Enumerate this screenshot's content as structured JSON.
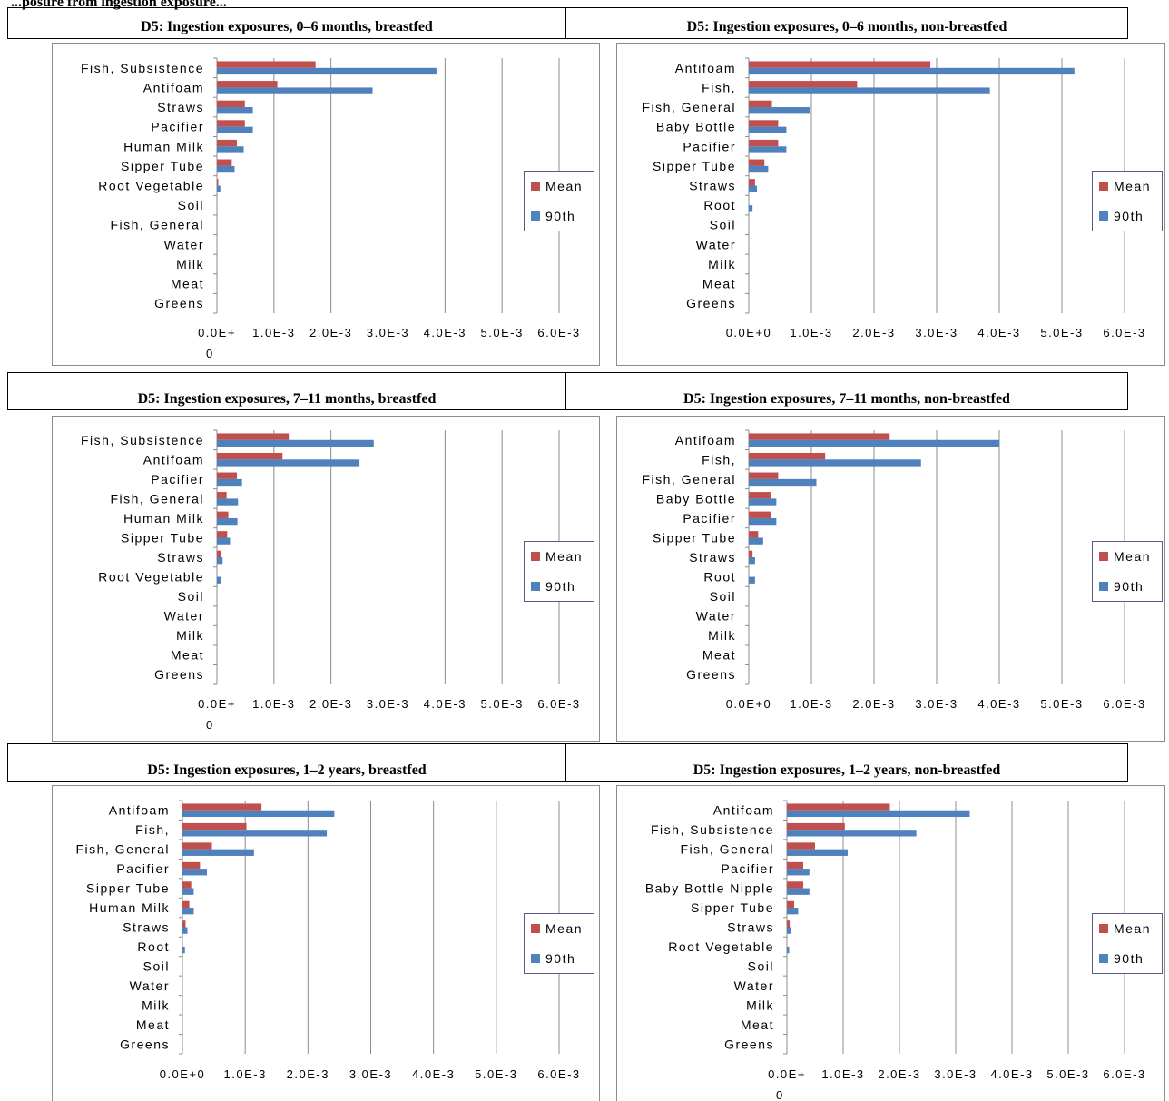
{
  "header_fragment": "...posure from ingestion exposure...",
  "chart_data": [
    {
      "type": "bar",
      "title": "D5: Ingestion exposures, 0–6 months, breastfed",
      "categories": [
        "Fish, Subsistence",
        "Antifoam",
        "Straws",
        "Pacifier",
        "Human Milk",
        "Sipper Tube",
        "Root Vegetable",
        "Soil",
        "Fish, General",
        "Water",
        "Milk",
        "Meat",
        "Greens"
      ],
      "series": [
        {
          "name": "Mean",
          "color": "#c0504d",
          "values": [
            0.00173,
            0.00106,
            0.00049,
            0.00049,
            0.00035,
            0.00026,
            1e-05,
            0,
            0,
            0,
            0,
            0,
            0
          ]
        },
        {
          "name": "90th",
          "color": "#4f81bd",
          "values": [
            0.00385,
            0.00273,
            0.00063,
            0.00063,
            0.00047,
            0.00031,
            6e-05,
            0,
            0,
            0,
            0,
            0,
            0
          ]
        }
      ],
      "tick_labels": [
        "0.0E+\n0",
        "1.0E-3",
        "2.0E-3",
        "3.0E-3",
        "4.0E-3",
        "5.0E-3",
        "6.0E-3"
      ],
      "xlim": [
        0,
        0.006
      ],
      "legend": "right"
    },
    {
      "type": "bar",
      "title": "D5: Ingestion exposures, 0–6 months, non-breastfed",
      "categories": [
        "Antifoam",
        "Fish,",
        "Fish, General",
        "Baby Bottle",
        "Pacifier",
        "Sipper Tube",
        "Straws",
        "Root",
        "Soil",
        "Water",
        "Milk",
        "Meat",
        "Greens"
      ],
      "series": [
        {
          "name": "Mean",
          "color": "#c0504d",
          "values": [
            0.0029,
            0.00173,
            0.00037,
            0.00047,
            0.00047,
            0.00025,
            0.0001,
            0,
            0,
            0,
            0,
            0,
            0
          ]
        },
        {
          "name": "90th",
          "color": "#4f81bd",
          "values": [
            0.0052,
            0.00385,
            0.00098,
            0.0006,
            0.0006,
            0.00031,
            0.00013,
            6e-05,
            0,
            0,
            0,
            0,
            0
          ]
        }
      ],
      "tick_labels": [
        "0.0E+0",
        "1.0E-3",
        "2.0E-3",
        "3.0E-3",
        "4.0E-3",
        "5.0E-3",
        "6.0E-3"
      ],
      "xlim": [
        0,
        0.006
      ],
      "legend": "right"
    },
    {
      "type": "bar",
      "title": "D5: Ingestion exposures, 7–11 months, breastfed",
      "categories": [
        "Fish, Subsistence",
        "Antifoam",
        "Pacifier",
        "Fish, General",
        "Human Milk",
        "Sipper Tube",
        "Straws",
        "Root Vegetable",
        "Soil",
        "Water",
        "Milk",
        "Meat",
        "Greens"
      ],
      "series": [
        {
          "name": "Mean",
          "color": "#c0504d",
          "values": [
            0.00126,
            0.00115,
            0.00035,
            0.00017,
            0.0002,
            0.00018,
            7e-05,
            0,
            0,
            0,
            0,
            0,
            0
          ]
        },
        {
          "name": "90th",
          "color": "#4f81bd",
          "values": [
            0.00275,
            0.0025,
            0.00044,
            0.00037,
            0.00036,
            0.00023,
            0.0001,
            7e-05,
            0,
            0,
            0,
            0,
            0
          ]
        }
      ],
      "tick_labels": [
        "0.0E+\n0",
        "1.0E-3",
        "2.0E-3",
        "3.0E-3",
        "4.0E-3",
        "5.0E-3",
        "6.0E-3"
      ],
      "xlim": [
        0,
        0.006
      ],
      "legend": "right"
    },
    {
      "type": "bar",
      "title": "D5: Ingestion exposures, 7–11 months, non-breastfed",
      "categories": [
        "Antifoam",
        "Fish,",
        "Fish, General",
        "Baby Bottle",
        "Pacifier",
        "Sipper Tube",
        "Straws",
        "Root",
        "Soil",
        "Water",
        "Milk",
        "Meat",
        "Greens"
      ],
      "series": [
        {
          "name": "Mean",
          "color": "#c0504d",
          "values": [
            0.00225,
            0.00122,
            0.00047,
            0.00035,
            0.00035,
            0.00015,
            6e-05,
            0,
            0,
            0,
            0,
            0,
            0
          ]
        },
        {
          "name": "90th",
          "color": "#4f81bd",
          "values": [
            0.004,
            0.00275,
            0.00108,
            0.00044,
            0.00044,
            0.00023,
            0.0001,
            0.0001,
            0,
            0,
            0,
            0,
            0
          ]
        }
      ],
      "tick_labels": [
        "0.0E+0",
        "1.0E-3",
        "2.0E-3",
        "3.0E-3",
        "4.0E-3",
        "5.0E-3",
        "6.0E-3"
      ],
      "xlim": [
        0,
        0.006
      ],
      "legend": "right"
    },
    {
      "type": "bar",
      "title": "D5: Ingestion exposures, 1–2 years, breastfed",
      "categories": [
        "Antifoam",
        "Fish,",
        "Fish, General",
        "Pacifier",
        "Sipper Tube",
        "Human Milk",
        "Straws",
        "Root",
        "Soil",
        "Water",
        "Milk",
        "Meat",
        "Greens"
      ],
      "series": [
        {
          "name": "Mean",
          "color": "#c0504d",
          "values": [
            0.00126,
            0.00102,
            0.00047,
            0.00028,
            0.00014,
            0.00011,
            5e-05,
            0,
            0,
            0,
            0,
            0,
            0
          ]
        },
        {
          "name": "90th",
          "color": "#4f81bd",
          "values": [
            0.00242,
            0.0023,
            0.00114,
            0.00039,
            0.00018,
            0.00018,
            8e-05,
            4e-05,
            0,
            0,
            0,
            0,
            0
          ]
        }
      ],
      "tick_labels": [
        "0.0E+0",
        "1.0E-3",
        "2.0E-3",
        "3.0E-3",
        "4.0E-3",
        "5.0E-3",
        "6.0E-3"
      ],
      "xlim": [
        0,
        0.006
      ],
      "legend": "right"
    },
    {
      "type": "bar",
      "title": "D5: Ingestion exposures, 1–2 years, non-breastfed",
      "categories": [
        "Antifoam",
        "Fish, Subsistence",
        "Fish, General",
        "Pacifier",
        "Baby Bottle Nipple",
        "Sipper Tube",
        "Straws",
        "Root Vegetable",
        "Soil",
        "Water",
        "Milk",
        "Meat",
        "Greens"
      ],
      "series": [
        {
          "name": "Mean",
          "color": "#c0504d",
          "values": [
            0.00183,
            0.00103,
            0.0005,
            0.00029,
            0.00029,
            0.00013,
            5e-05,
            0,
            0,
            0,
            0,
            0,
            0
          ]
        },
        {
          "name": "90th",
          "color": "#4f81bd",
          "values": [
            0.00325,
            0.0023,
            0.00108,
            0.0004,
            0.0004,
            0.0002,
            8e-05,
            4e-05,
            0,
            0,
            0,
            0,
            0
          ]
        }
      ],
      "tick_labels": [
        "0.0E+\n0",
        "1.0E-3",
        "2.0E-3",
        "3.0E-3",
        "4.0E-3",
        "5.0E-3",
        "6.0E-3"
      ],
      "xlim": [
        0,
        0.006
      ],
      "legend": "right"
    }
  ]
}
